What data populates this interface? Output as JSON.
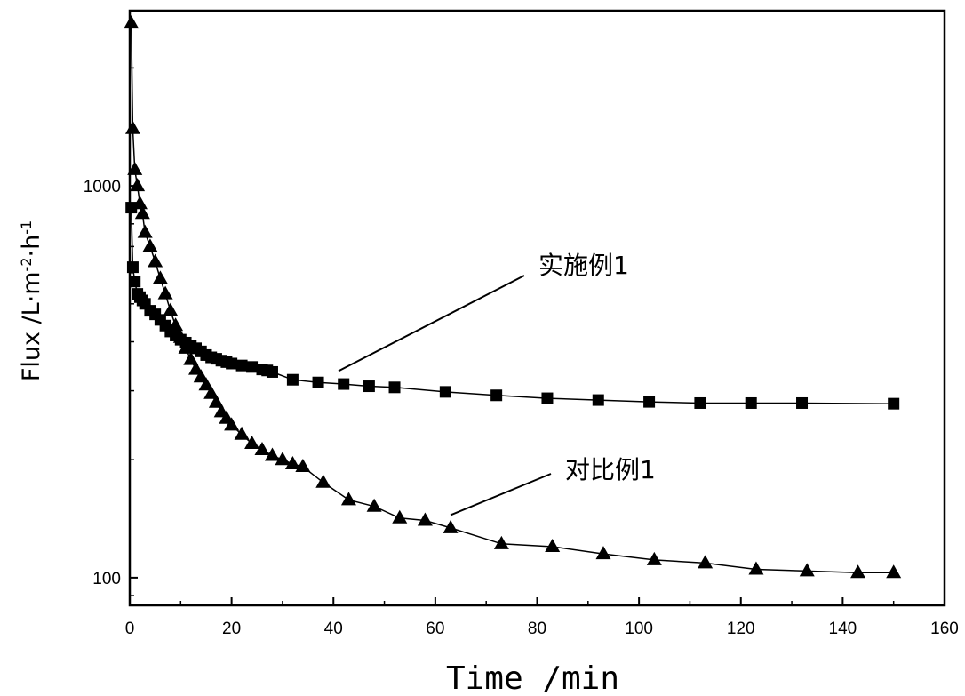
{
  "chart_data": {
    "type": "line",
    "xlabel": "Time /min",
    "ylabel": {
      "base": "Flux /L·m",
      "sup1": "-2",
      "mid": "·h",
      "sup2": "-1"
    },
    "xlim": [
      0,
      160
    ],
    "ylim": [
      85,
      2800
    ],
    "y_scale": "log",
    "x_ticks": [
      0,
      20,
      40,
      60,
      80,
      100,
      120,
      140,
      160
    ],
    "y_ticks": [
      100,
      1000
    ],
    "grid": false,
    "series": [
      {
        "name": "实施例1",
        "marker": "square",
        "x": [
          0.3,
          0.6,
          1,
          1.5,
          2,
          2.5,
          3,
          4,
          5,
          6,
          7,
          8,
          9,
          10,
          11,
          12,
          13,
          14,
          15,
          16,
          17,
          18,
          19,
          20,
          22,
          24,
          26,
          27,
          28,
          32,
          37,
          42,
          47,
          52,
          62,
          72,
          82,
          92,
          102,
          112,
          122,
          132,
          150
        ],
        "y": [
          880,
          620,
          570,
          530,
          520,
          510,
          500,
          480,
          470,
          455,
          440,
          425,
          415,
          405,
          398,
          390,
          385,
          378,
          370,
          365,
          362,
          358,
          355,
          352,
          348,
          345,
          340,
          338,
          335,
          320,
          315,
          312,
          308,
          306,
          298,
          292,
          287,
          284,
          281,
          279,
          279,
          279,
          278
        ]
      },
      {
        "name": "对比例1",
        "marker": "triangle",
        "x": [
          0.3,
          0.6,
          1,
          1.5,
          2,
          2.5,
          3,
          4,
          5,
          6,
          7,
          8,
          9,
          10,
          11,
          12,
          13,
          14,
          15,
          16,
          17,
          18,
          19,
          20,
          22,
          24,
          26,
          28,
          30,
          32,
          34,
          38,
          43,
          48,
          53,
          58,
          63,
          73,
          83,
          93,
          103,
          113,
          123,
          133,
          143,
          150
        ],
        "y": [
          2600,
          1400,
          1100,
          1000,
          900,
          850,
          760,
          700,
          640,
          580,
          530,
          480,
          440,
          410,
          385,
          360,
          340,
          325,
          310,
          295,
          280,
          265,
          255,
          245,
          232,
          220,
          212,
          205,
          200,
          195,
          192,
          175,
          158,
          152,
          142,
          140,
          134,
          122,
          120,
          115,
          111,
          109,
          105,
          104,
          103,
          103
        ]
      }
    ],
    "annotations": [
      {
        "text": "实施例1",
        "series": 0
      },
      {
        "text": "对比例1",
        "series": 1
      }
    ]
  }
}
